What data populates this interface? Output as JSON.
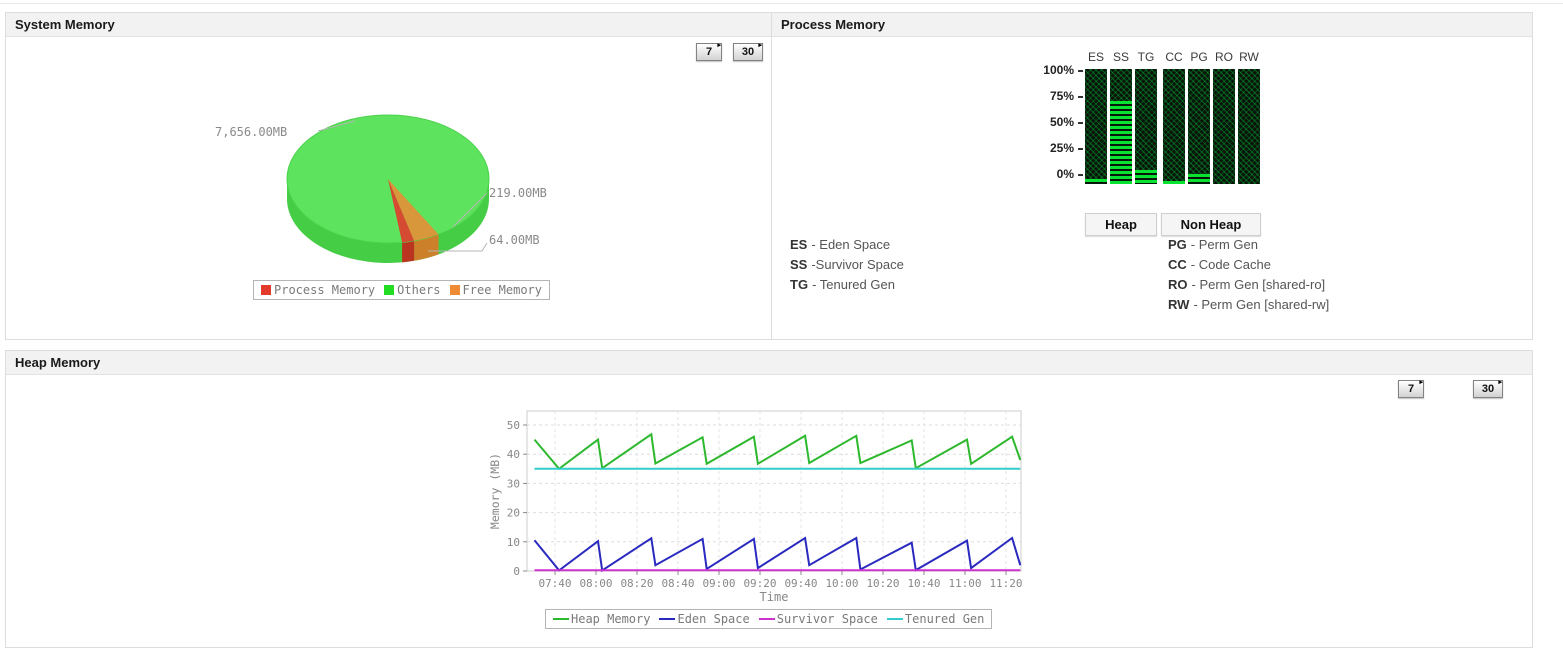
{
  "icons": {
    "range_arrow": "▸"
  },
  "system_memory": {
    "title": "System Memory",
    "range_buttons": [
      "7",
      "30"
    ],
    "pie_labels": {
      "others": "7,656.00MB",
      "free": "219.00MB",
      "process": "64.00MB"
    }
  },
  "process_memory": {
    "title": "Process Memory",
    "group_buttons": [
      "Heap",
      "Non Heap"
    ],
    "abbrev_left": [
      {
        "abbr": "ES",
        "name": "- Eden Space"
      },
      {
        "abbr": "SS",
        "name": "-Survivor Space"
      },
      {
        "abbr": "TG",
        "name": "- Tenured Gen"
      }
    ],
    "abbrev_right": [
      {
        "abbr": "PG",
        "name": "- Perm Gen"
      },
      {
        "abbr": "CC",
        "name": "- Code Cache"
      },
      {
        "abbr": "RO",
        "name": "- Perm Gen [shared-ro]"
      },
      {
        "abbr": "RW",
        "name": "- Perm Gen [shared-rw]"
      }
    ]
  },
  "heap_memory": {
    "title": "Heap Memory",
    "range_buttons": [
      "7",
      "30"
    ]
  },
  "chart_data": [
    {
      "type": "pie",
      "title": "System Memory",
      "style": "3d",
      "labels": [
        "Process Memory",
        "Others",
        "Free Memory"
      ],
      "values_mb": [
        64.0,
        7656.0,
        219.0
      ],
      "display_labels": [
        "64.00MB",
        "7,656.00MB",
        "219.00MB"
      ],
      "colors": [
        "#e23a2c",
        "#22dd22",
        "#ef8a35"
      ],
      "legend_position": "bottom"
    },
    {
      "type": "bar",
      "title": "Process Memory",
      "categories": [
        "ES",
        "SS",
        "TG",
        "CC",
        "PG",
        "RO",
        "RW"
      ],
      "values_pct": [
        5,
        78,
        13,
        3,
        9,
        0,
        0
      ],
      "groups": {
        "Heap": [
          "ES",
          "SS",
          "TG"
        ],
        "Non Heap": [
          "CC",
          "PG",
          "RO",
          "RW"
        ]
      },
      "yticks": [
        "100%",
        "75%",
        "50%",
        "25%",
        "0%"
      ],
      "ylim": [
        0,
        100
      ],
      "fill_color": "#0ae232",
      "track_color": "#0a140a"
    },
    {
      "type": "line",
      "title": "Heap Memory",
      "xlabel": "Time",
      "ylabel": "Memory (MB)",
      "ylim": [
        0,
        54
      ],
      "yticks": [
        0,
        10,
        20,
        30,
        40,
        50
      ],
      "xtick_labels": [
        "07:40",
        "08:00",
        "08:20",
        "08:40",
        "09:00",
        "09:20",
        "09:40",
        "10:00",
        "10:20",
        "10:40",
        "11:00",
        "11:20"
      ],
      "grid": true,
      "legend_position": "bottom",
      "series": [
        {
          "name": "Heap Memory",
          "color": "#2eb82e",
          "points": [
            [
              0,
              45
            ],
            [
              12,
              35
            ],
            [
              31,
              45
            ],
            [
              33,
              35.2
            ],
            [
              57,
              46.8
            ],
            [
              59,
              36.8
            ],
            [
              82,
              45.8
            ],
            [
              84,
              36.7
            ],
            [
              107,
              46
            ],
            [
              109,
              36.7
            ],
            [
              132,
              46.3
            ],
            [
              134,
              37
            ],
            [
              157,
              46.3
            ],
            [
              159,
              37
            ],
            [
              184,
              44.7
            ],
            [
              186,
              35.2
            ],
            [
              211,
              45
            ],
            [
              213,
              36.7
            ],
            [
              233,
              46
            ],
            [
              237,
              38
            ]
          ]
        },
        {
          "name": "Eden Space",
          "color": "#2929c0",
          "points": [
            [
              0,
              10.5
            ],
            [
              12,
              0.2
            ],
            [
              31,
              10.2
            ],
            [
              33,
              0.2
            ],
            [
              57,
              11.2
            ],
            [
              59,
              2
            ],
            [
              82,
              11
            ],
            [
              84,
              0.7
            ],
            [
              107,
              11
            ],
            [
              109,
              1
            ],
            [
              132,
              11.3
            ],
            [
              134,
              2
            ],
            [
              157,
              11.3
            ],
            [
              159,
              0.5
            ],
            [
              184,
              9.7
            ],
            [
              186,
              0.3
            ],
            [
              211,
              10.4
            ],
            [
              213,
              1
            ],
            [
              233,
              11.3
            ],
            [
              237,
              2
            ]
          ]
        },
        {
          "name": "Survivor Space",
          "color": "#cc33cc",
          "points": [
            [
              0,
              0.25
            ],
            [
              237,
              0.25
            ]
          ]
        },
        {
          "name": "Tenured Gen",
          "color": "#33cccc",
          "points": [
            [
              0,
              35
            ],
            [
              237,
              35
            ]
          ]
        }
      ]
    }
  ]
}
